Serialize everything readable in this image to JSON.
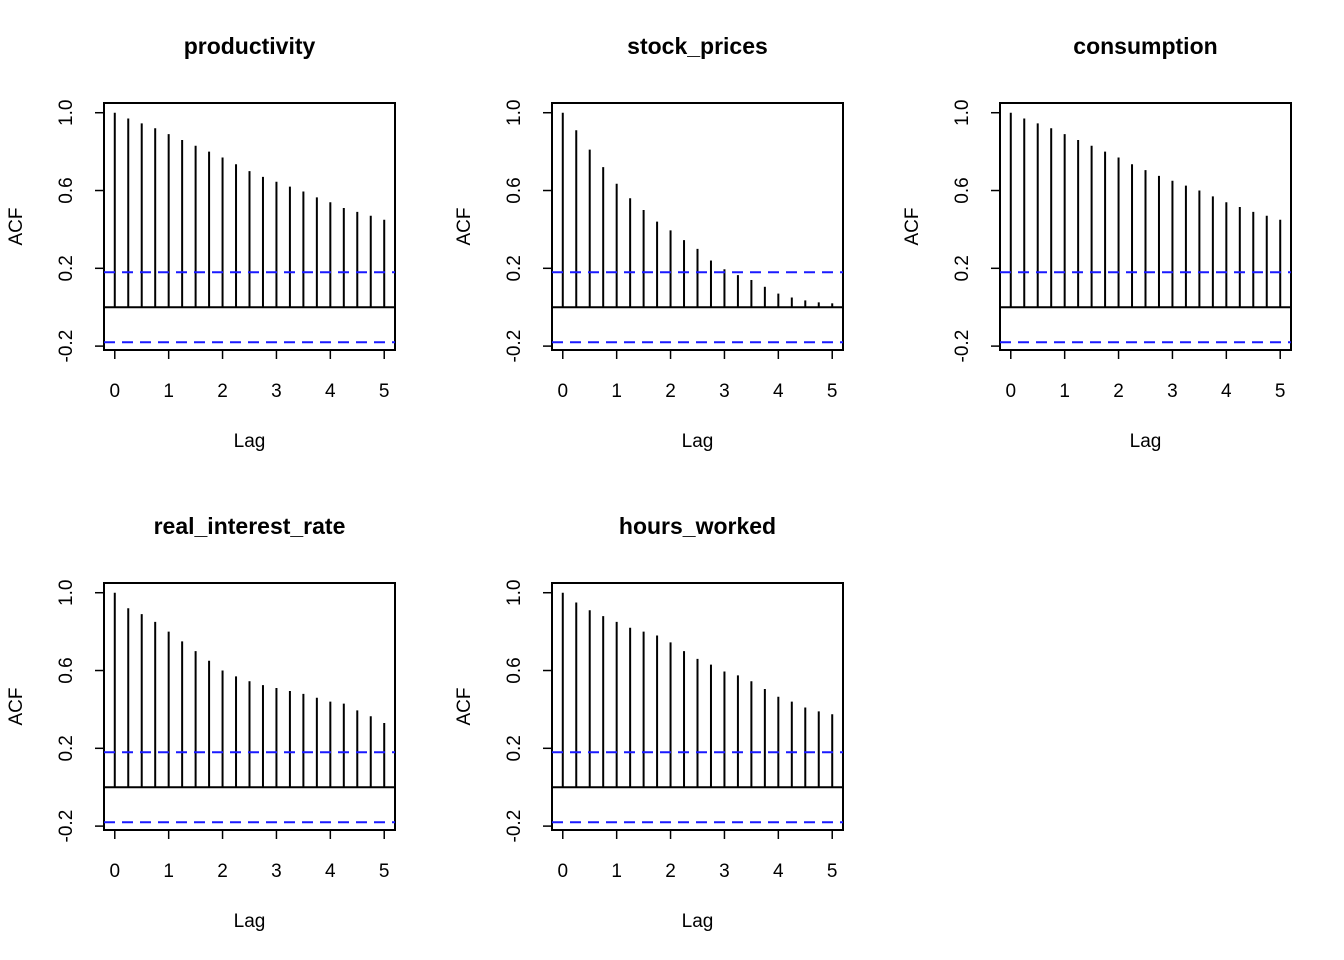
{
  "chart_data": [
    {
      "type": "bar",
      "title": "productivity",
      "xlabel": "Lag",
      "ylabel": "ACF",
      "xlim": [
        -0.2,
        5.2
      ],
      "ylim": [
        -0.22,
        1.05
      ],
      "xticks": [
        0,
        1,
        2,
        3,
        4,
        5
      ],
      "yticks": [
        -0.2,
        0.2,
        0.6,
        1.0
      ],
      "ytick_labels": [
        "-0.2",
        "0.2",
        "0.6",
        "1.0"
      ],
      "ci": 0.18,
      "grid": false,
      "lags": [
        0,
        0.25,
        0.5,
        0.75,
        1,
        1.25,
        1.5,
        1.75,
        2,
        2.25,
        2.5,
        2.75,
        3,
        3.25,
        3.5,
        3.75,
        4,
        4.25,
        4.5,
        4.75,
        5
      ],
      "values": [
        1.0,
        0.97,
        0.945,
        0.92,
        0.89,
        0.86,
        0.83,
        0.8,
        0.77,
        0.735,
        0.7,
        0.67,
        0.645,
        0.62,
        0.595,
        0.565,
        0.54,
        0.51,
        0.49,
        0.47,
        0.45
      ]
    },
    {
      "type": "bar",
      "title": "stock_prices",
      "xlabel": "Lag",
      "ylabel": "ACF",
      "xlim": [
        -0.2,
        5.2
      ],
      "ylim": [
        -0.22,
        1.05
      ],
      "xticks": [
        0,
        1,
        2,
        3,
        4,
        5
      ],
      "yticks": [
        -0.2,
        0.2,
        0.6,
        1.0
      ],
      "ytick_labels": [
        "-0.2",
        "0.2",
        "0.6",
        "1.0"
      ],
      "ci": 0.18,
      "grid": false,
      "lags": [
        0,
        0.25,
        0.5,
        0.75,
        1,
        1.25,
        1.5,
        1.75,
        2,
        2.25,
        2.5,
        2.75,
        3,
        3.25,
        3.5,
        3.75,
        4,
        4.25,
        4.5,
        4.75,
        5
      ],
      "values": [
        1.0,
        0.91,
        0.81,
        0.72,
        0.635,
        0.56,
        0.5,
        0.44,
        0.395,
        0.345,
        0.3,
        0.24,
        0.195,
        0.165,
        0.14,
        0.105,
        0.07,
        0.05,
        0.035,
        0.025,
        0.02
      ]
    },
    {
      "type": "bar",
      "title": "consumption",
      "xlabel": "Lag",
      "ylabel": "ACF",
      "xlim": [
        -0.2,
        5.2
      ],
      "ylim": [
        -0.22,
        1.05
      ],
      "xticks": [
        0,
        1,
        2,
        3,
        4,
        5
      ],
      "yticks": [
        -0.2,
        0.2,
        0.6,
        1.0
      ],
      "ytick_labels": [
        "-0.2",
        "0.2",
        "0.6",
        "1.0"
      ],
      "ci": 0.18,
      "grid": false,
      "lags": [
        0,
        0.25,
        0.5,
        0.75,
        1,
        1.25,
        1.5,
        1.75,
        2,
        2.25,
        2.5,
        2.75,
        3,
        3.25,
        3.5,
        3.75,
        4,
        4.25,
        4.5,
        4.75,
        5
      ],
      "values": [
        1.0,
        0.97,
        0.945,
        0.92,
        0.89,
        0.86,
        0.83,
        0.8,
        0.77,
        0.735,
        0.705,
        0.675,
        0.65,
        0.625,
        0.6,
        0.57,
        0.54,
        0.515,
        0.49,
        0.47,
        0.45
      ]
    },
    {
      "type": "bar",
      "title": "real_interest_rate",
      "xlabel": "Lag",
      "ylabel": "ACF",
      "xlim": [
        -0.2,
        5.2
      ],
      "ylim": [
        -0.22,
        1.05
      ],
      "xticks": [
        0,
        1,
        2,
        3,
        4,
        5
      ],
      "yticks": [
        -0.2,
        0.2,
        0.6,
        1.0
      ],
      "ytick_labels": [
        "-0.2",
        "0.2",
        "0.6",
        "1.0"
      ],
      "ci": 0.18,
      "grid": false,
      "lags": [
        0,
        0.25,
        0.5,
        0.75,
        1,
        1.25,
        1.5,
        1.75,
        2,
        2.25,
        2.5,
        2.75,
        3,
        3.25,
        3.5,
        3.75,
        4,
        4.25,
        4.5,
        4.75,
        5
      ],
      "values": [
        1.0,
        0.92,
        0.89,
        0.85,
        0.8,
        0.75,
        0.7,
        0.65,
        0.6,
        0.57,
        0.545,
        0.525,
        0.51,
        0.495,
        0.48,
        0.46,
        0.44,
        0.43,
        0.395,
        0.365,
        0.33
      ]
    },
    {
      "type": "bar",
      "title": "hours_worked",
      "xlabel": "Lag",
      "ylabel": "ACF",
      "xlim": [
        -0.2,
        5.2
      ],
      "ylim": [
        -0.22,
        1.05
      ],
      "xticks": [
        0,
        1,
        2,
        3,
        4,
        5
      ],
      "yticks": [
        -0.2,
        0.2,
        0.6,
        1.0
      ],
      "ytick_labels": [
        "-0.2",
        "0.2",
        "0.6",
        "1.0"
      ],
      "ci": 0.18,
      "grid": false,
      "lags": [
        0,
        0.25,
        0.5,
        0.75,
        1,
        1.25,
        1.5,
        1.75,
        2,
        2.25,
        2.5,
        2.75,
        3,
        3.25,
        3.5,
        3.75,
        4,
        4.25,
        4.5,
        4.75,
        5
      ],
      "values": [
        1.0,
        0.95,
        0.91,
        0.88,
        0.85,
        0.82,
        0.8,
        0.78,
        0.745,
        0.7,
        0.66,
        0.63,
        0.595,
        0.575,
        0.545,
        0.505,
        0.465,
        0.44,
        0.41,
        0.39,
        0.375
      ]
    }
  ]
}
